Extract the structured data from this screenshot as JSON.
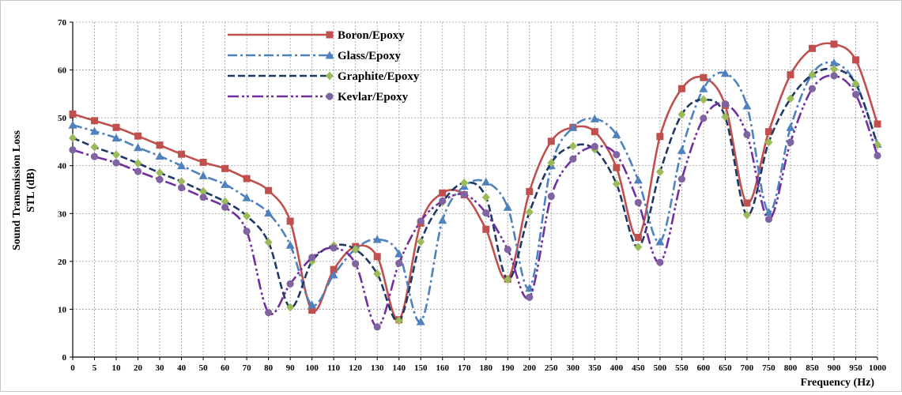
{
  "chart_data": {
    "type": "line",
    "xlabel": "Frequency (Hz)",
    "ylabel_line1": "Sound Transmission Loss",
    "ylabel_line2": "STL (dB)",
    "x": [
      "0",
      "5",
      "10",
      "20",
      "30",
      "40",
      "50",
      "60",
      "70",
      "80",
      "90",
      "100",
      "110",
      "120",
      "130",
      "140",
      "150",
      "160",
      "170",
      "180",
      "190",
      "200",
      "250",
      "300",
      "350",
      "400",
      "450",
      "500",
      "550",
      "600",
      "650",
      "700",
      "750",
      "800",
      "850",
      "900",
      "950",
      "1000"
    ],
    "ylim": [
      0,
      70
    ],
    "yticks": [
      0,
      10,
      20,
      30,
      40,
      50,
      60,
      70
    ],
    "grid": true,
    "legend_position": "top-left",
    "series": [
      {
        "name": "Boron/Epoxy",
        "color": "#c0504d",
        "style": "solid",
        "marker": "square",
        "values": [
          50.8,
          49.4,
          48.0,
          46.2,
          44.3,
          42.4,
          40.7,
          39.4,
          37.3,
          34.8,
          28.4,
          9.8,
          18.3,
          23.1,
          21.0,
          7.8,
          28.0,
          34.3,
          33.9,
          26.7,
          16.3,
          34.6,
          45.1,
          48.0,
          47.1,
          39.6,
          25.0,
          46.1,
          56.1,
          58.4,
          52.6,
          32.2,
          47.1,
          59.0,
          64.5,
          65.4,
          62.1,
          48.7
        ]
      },
      {
        "name": "Glass/Epoxy",
        "color": "#4f81bd",
        "style": "dashdot",
        "marker": "triangle",
        "values": [
          48.5,
          47.2,
          45.8,
          43.8,
          42.0,
          40.0,
          37.9,
          36.1,
          33.3,
          30.1,
          23.4,
          10.9,
          17.2,
          22.6,
          24.6,
          21.6,
          7.4,
          28.6,
          35.7,
          36.6,
          31.3,
          14.4,
          40.0,
          48.0,
          49.8,
          46.5,
          37.0,
          24.1,
          43.2,
          56.1,
          59.3,
          52.5,
          30.3,
          48.0,
          59.2,
          61.5,
          57.2,
          44.5
        ]
      },
      {
        "name": "Graphite/Epoxy",
        "color": "#1f3864",
        "style": "dashed",
        "marker": "diamond",
        "values": [
          45.8,
          43.9,
          42.3,
          40.5,
          38.5,
          36.7,
          34.6,
          32.5,
          29.5,
          24.0,
          10.4,
          20.0,
          23.3,
          22.5,
          17.4,
          7.6,
          24.1,
          32.4,
          36.4,
          33.4,
          16.2,
          30.3,
          40.6,
          44.1,
          43.4,
          36.2,
          23.0,
          38.7,
          50.7,
          53.8,
          50.2,
          29.7,
          44.9,
          54.0,
          59.0,
          60.2,
          57.1,
          44.4
        ]
      },
      {
        "name": "Kevlar/Epoxy",
        "color": "#7030a0",
        "style": "dashdotdot",
        "marker": "circle",
        "values": [
          43.3,
          41.9,
          40.6,
          38.8,
          37.1,
          35.4,
          33.4,
          31.3,
          26.3,
          9.3,
          15.3,
          20.8,
          22.8,
          19.5,
          6.3,
          19.6,
          28.4,
          32.6,
          34.0,
          30.1,
          22.5,
          12.5,
          33.6,
          41.4,
          44.0,
          42.3,
          32.3,
          19.8,
          37.2,
          49.9,
          52.9,
          46.5,
          28.8,
          44.9,
          56.1,
          58.8,
          54.9,
          42.1
        ]
      }
    ]
  }
}
